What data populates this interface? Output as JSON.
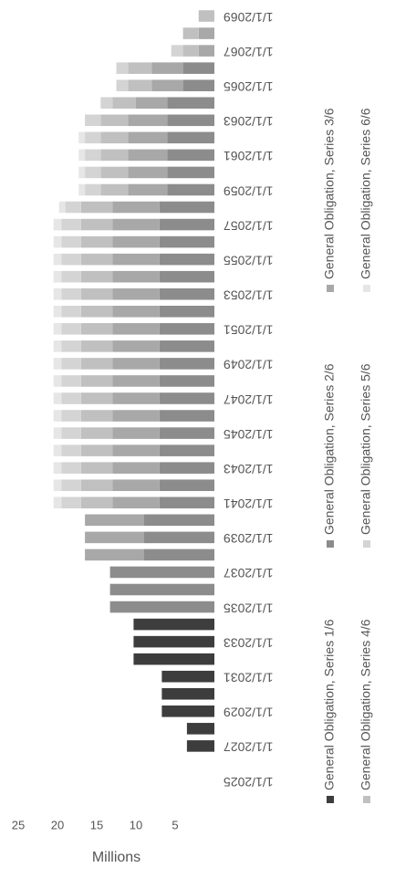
{
  "chart_data": {
    "type": "bar",
    "stacked": true,
    "y_label": "Millions",
    "categories": [
      "1/1/2025",
      null,
      "1/1/2027",
      null,
      "1/1/2029",
      null,
      "1/1/2031",
      null,
      "1/1/2033",
      null,
      "1/1/2035",
      null,
      "1/1/2037",
      null,
      "1/1/2039",
      null,
      "1/1/2041",
      null,
      "1/1/2043",
      null,
      "1/1/2045",
      null,
      "1/1/2047",
      null,
      "1/1/2049",
      null,
      "1/1/2051",
      null,
      "1/1/2053",
      null,
      "1/1/2055",
      null,
      "1/1/2057",
      null,
      "1/1/2059",
      null,
      "1/1/2061",
      null,
      "1/1/2063",
      null,
      "1/1/2065",
      null,
      "1/1/2067",
      null,
      "1/1/2069"
    ],
    "series": [
      {
        "name": "General Obligation, Series 1/6",
        "color": "#3d3d3d",
        "values": [
          null,
          null,
          3.5,
          3.5,
          6.7,
          6.7,
          6.7,
          10.3,
          10.3,
          10.3,
          null,
          null,
          null,
          null,
          null,
          null,
          null,
          null,
          null,
          null,
          null,
          null,
          null,
          null,
          null,
          null,
          null,
          null,
          null,
          null,
          null,
          null,
          null,
          null,
          null,
          null,
          null,
          null,
          null,
          null,
          null,
          null,
          null,
          null,
          null
        ]
      },
      {
        "name": "General Obligation, Series 2/6",
        "color": "#8c8c8c",
        "values": [
          null,
          null,
          null,
          null,
          null,
          null,
          null,
          null,
          null,
          null,
          13.3,
          13.3,
          13.3,
          9,
          9,
          9,
          7,
          7,
          7,
          7,
          7,
          7,
          7,
          7,
          7,
          7,
          7,
          7,
          7,
          7,
          7,
          7,
          7,
          7,
          6,
          6,
          6,
          6,
          6,
          6,
          4,
          4,
          null,
          null,
          null
        ]
      },
      {
        "name": "General Obligation, Series 3/6",
        "color": "#a8a8a8",
        "values": [
          null,
          null,
          null,
          null,
          null,
          null,
          null,
          null,
          null,
          null,
          null,
          null,
          null,
          7.5,
          7.5,
          7.5,
          6,
          6,
          6,
          6,
          6,
          6,
          6,
          6,
          6,
          6,
          6,
          6,
          6,
          6,
          6,
          6,
          6,
          6,
          5,
          5,
          5,
          5,
          5,
          4,
          4,
          4,
          2,
          2,
          null
        ]
      },
      {
        "name": "General Obligation, Series 4/6",
        "color": "#c0c0c0",
        "values": [
          null,
          null,
          null,
          null,
          null,
          null,
          null,
          null,
          null,
          null,
          null,
          null,
          null,
          null,
          null,
          null,
          4,
          4,
          4,
          4,
          4,
          4,
          4,
          4,
          4,
          4,
          4,
          4,
          4,
          4,
          4,
          4,
          4,
          4,
          3.5,
          3.5,
          3.5,
          3.5,
          3.5,
          3,
          3,
          3,
          2,
          2,
          2
        ]
      },
      {
        "name": "General Obligation, Series 5/6",
        "color": "#d4d4d4",
        "values": [
          null,
          null,
          null,
          null,
          null,
          null,
          null,
          null,
          null,
          null,
          null,
          null,
          null,
          null,
          null,
          null,
          2.5,
          2.5,
          2.5,
          2.5,
          2.5,
          2.5,
          2.5,
          2.5,
          2.5,
          2.5,
          2.5,
          2.5,
          2.5,
          2.5,
          2.5,
          2.5,
          2.5,
          2,
          2,
          2,
          2,
          2,
          2,
          1.5,
          1.5,
          1.5,
          1.5,
          null,
          null
        ]
      },
      {
        "name": "General Obligation, Series 6/6",
        "color": "#e6e6e6",
        "values": [
          null,
          null,
          null,
          null,
          null,
          null,
          null,
          null,
          null,
          null,
          null,
          null,
          null,
          null,
          null,
          null,
          1,
          1,
          1,
          1,
          1,
          1,
          1,
          1,
          1,
          1,
          1,
          1,
          1,
          1,
          1,
          1,
          1,
          0.8,
          0.8,
          0.8,
          0.8,
          0.8,
          null,
          null,
          null,
          null,
          null,
          null,
          null
        ]
      }
    ],
    "ylim": [
      0,
      25
    ],
    "yticks": [
      5,
      10,
      15,
      20,
      25
    ],
    "grid": false,
    "legend": "bottom"
  }
}
